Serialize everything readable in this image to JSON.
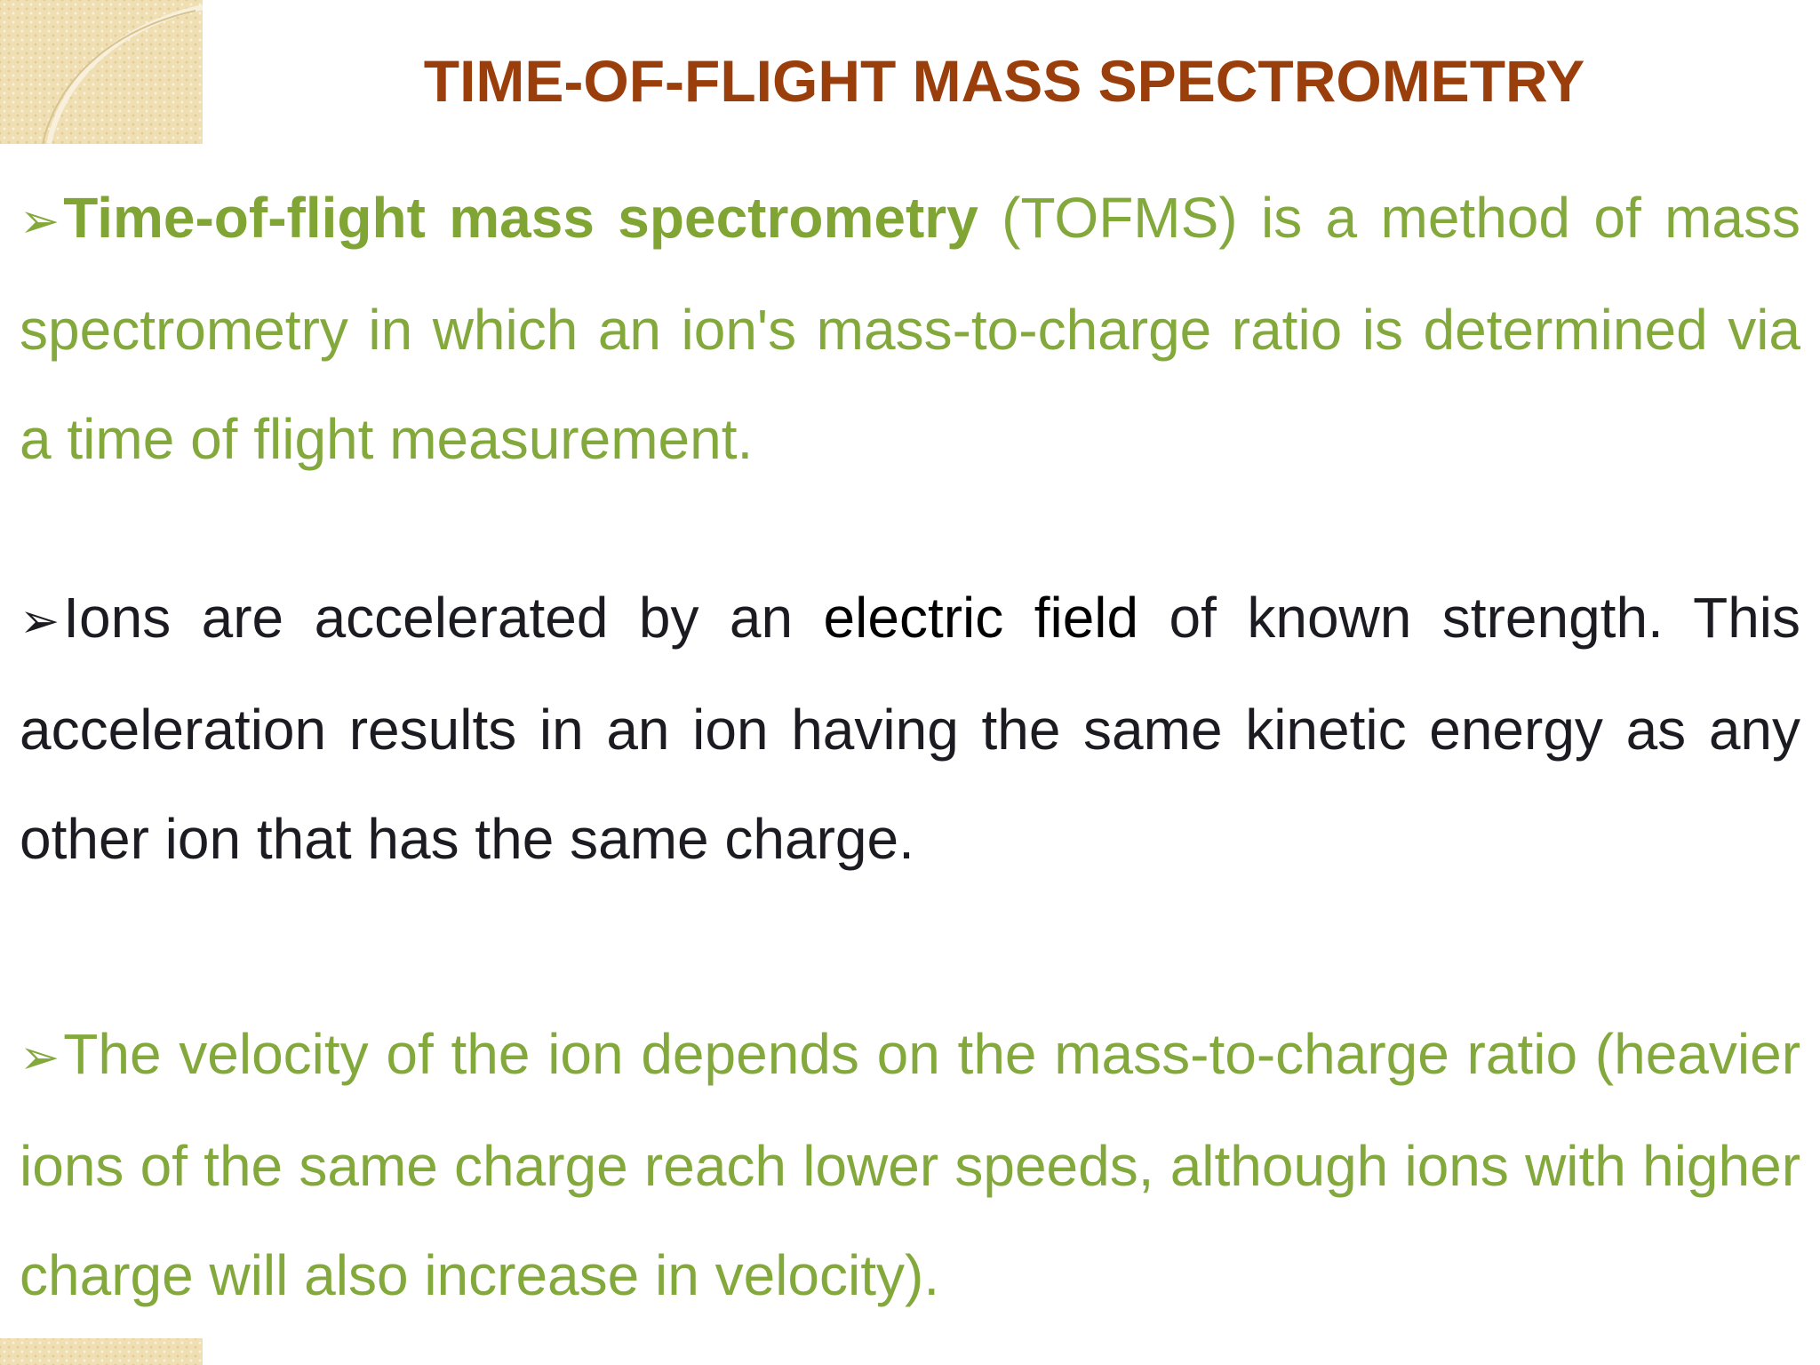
{
  "slide": {
    "title": "TIME-OF-FLIGHT MASS SPECTROMETRY",
    "bullet_glyph": "➢",
    "paragraphs": [
      {
        "lead": "Time-of-flight mass spectrometry",
        "rest": " (TOFMS) is a method of mass spectrometry in which an ion's mass-to-charge ratio is determined via a time of flight measurement."
      },
      {
        "pre": "Ions are accelerated by an ",
        "highlight": "electric field",
        "post": " of known strength. This acceleration results in an ion having the same kinetic energy as any other ion that has the same charge."
      },
      {
        "text": "The velocity of the ion depends on the mass-to-charge ratio (heavier ions of the same charge reach lower speeds, although ions with higher charge will also increase in velocity)."
      }
    ]
  },
  "colors": {
    "title": "#9a3f0c",
    "green_text": "#83a83b",
    "dark_text": "#1d1b22",
    "decoration": "#efdfb3"
  }
}
